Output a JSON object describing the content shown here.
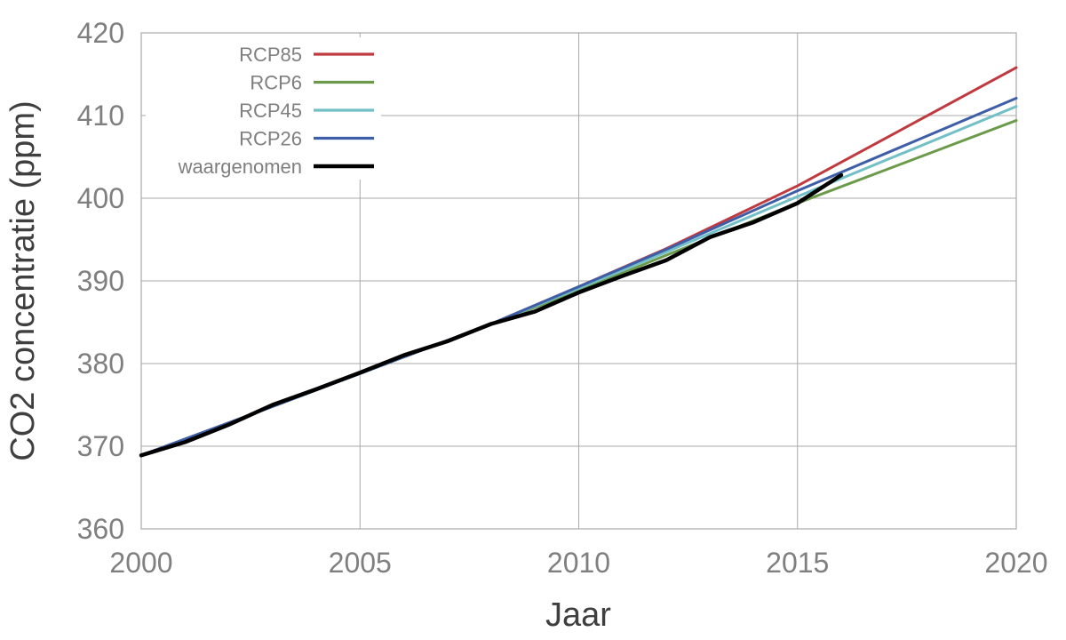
{
  "chart_data": {
    "type": "line",
    "title": "",
    "xlabel": "Jaar",
    "ylabel": "CO2 concentratie (ppm)",
    "xlim": [
      2000,
      2020
    ],
    "ylim": [
      360,
      420
    ],
    "x_ticks": [
      2000,
      2005,
      2010,
      2015,
      2020
    ],
    "y_ticks": [
      360,
      370,
      380,
      390,
      400,
      410,
      420
    ],
    "grid": true,
    "legend_position": "top-left",
    "series": [
      {
        "name": "RCP85",
        "color": "#c0393f",
        "points": [
          [
            2000,
            368.9
          ],
          [
            2003,
            374.8
          ],
          [
            2005,
            378.8
          ],
          [
            2008,
            384.8
          ],
          [
            2010,
            389.3
          ],
          [
            2012,
            393.9
          ],
          [
            2015,
            401.5
          ],
          [
            2020,
            415.8
          ]
        ]
      },
      {
        "name": "RCP6",
        "color": "#6a9a4a",
        "points": [
          [
            2000,
            368.9
          ],
          [
            2003,
            374.8
          ],
          [
            2005,
            378.8
          ],
          [
            2008,
            384.8
          ],
          [
            2010,
            388.8
          ],
          [
            2012,
            393.1
          ],
          [
            2015,
            399.4
          ],
          [
            2020,
            409.4
          ]
        ]
      },
      {
        "name": "RCP45",
        "color": "#72bfc8",
        "points": [
          [
            2000,
            368.9
          ],
          [
            2003,
            374.8
          ],
          [
            2005,
            378.8
          ],
          [
            2008,
            384.8
          ],
          [
            2010,
            389.1
          ],
          [
            2012,
            393.5
          ],
          [
            2015,
            400.2
          ],
          [
            2020,
            411.1
          ]
        ]
      },
      {
        "name": "RCP26",
        "color": "#3e5ea8",
        "points": [
          [
            2000,
            368.9
          ],
          [
            2003,
            374.8
          ],
          [
            2005,
            378.8
          ],
          [
            2008,
            384.8
          ],
          [
            2010,
            389.3
          ],
          [
            2012,
            393.8
          ],
          [
            2015,
            400.9
          ],
          [
            2020,
            412.1
          ]
        ]
      },
      {
        "name": "waargenomen",
        "color": "#000000",
        "points": [
          [
            2000,
            368.9
          ],
          [
            2001,
            370.5
          ],
          [
            2002,
            372.6
          ],
          [
            2003,
            375.0
          ],
          [
            2004,
            376.9
          ],
          [
            2005,
            378.9
          ],
          [
            2006,
            381.0
          ],
          [
            2007,
            382.7
          ],
          [
            2008,
            384.8
          ],
          [
            2009,
            386.3
          ],
          [
            2010,
            388.6
          ],
          [
            2011,
            390.6
          ],
          [
            2012,
            392.5
          ],
          [
            2013,
            395.3
          ],
          [
            2014,
            397.1
          ],
          [
            2015,
            399.4
          ],
          [
            2016,
            402.8
          ]
        ]
      }
    ]
  }
}
